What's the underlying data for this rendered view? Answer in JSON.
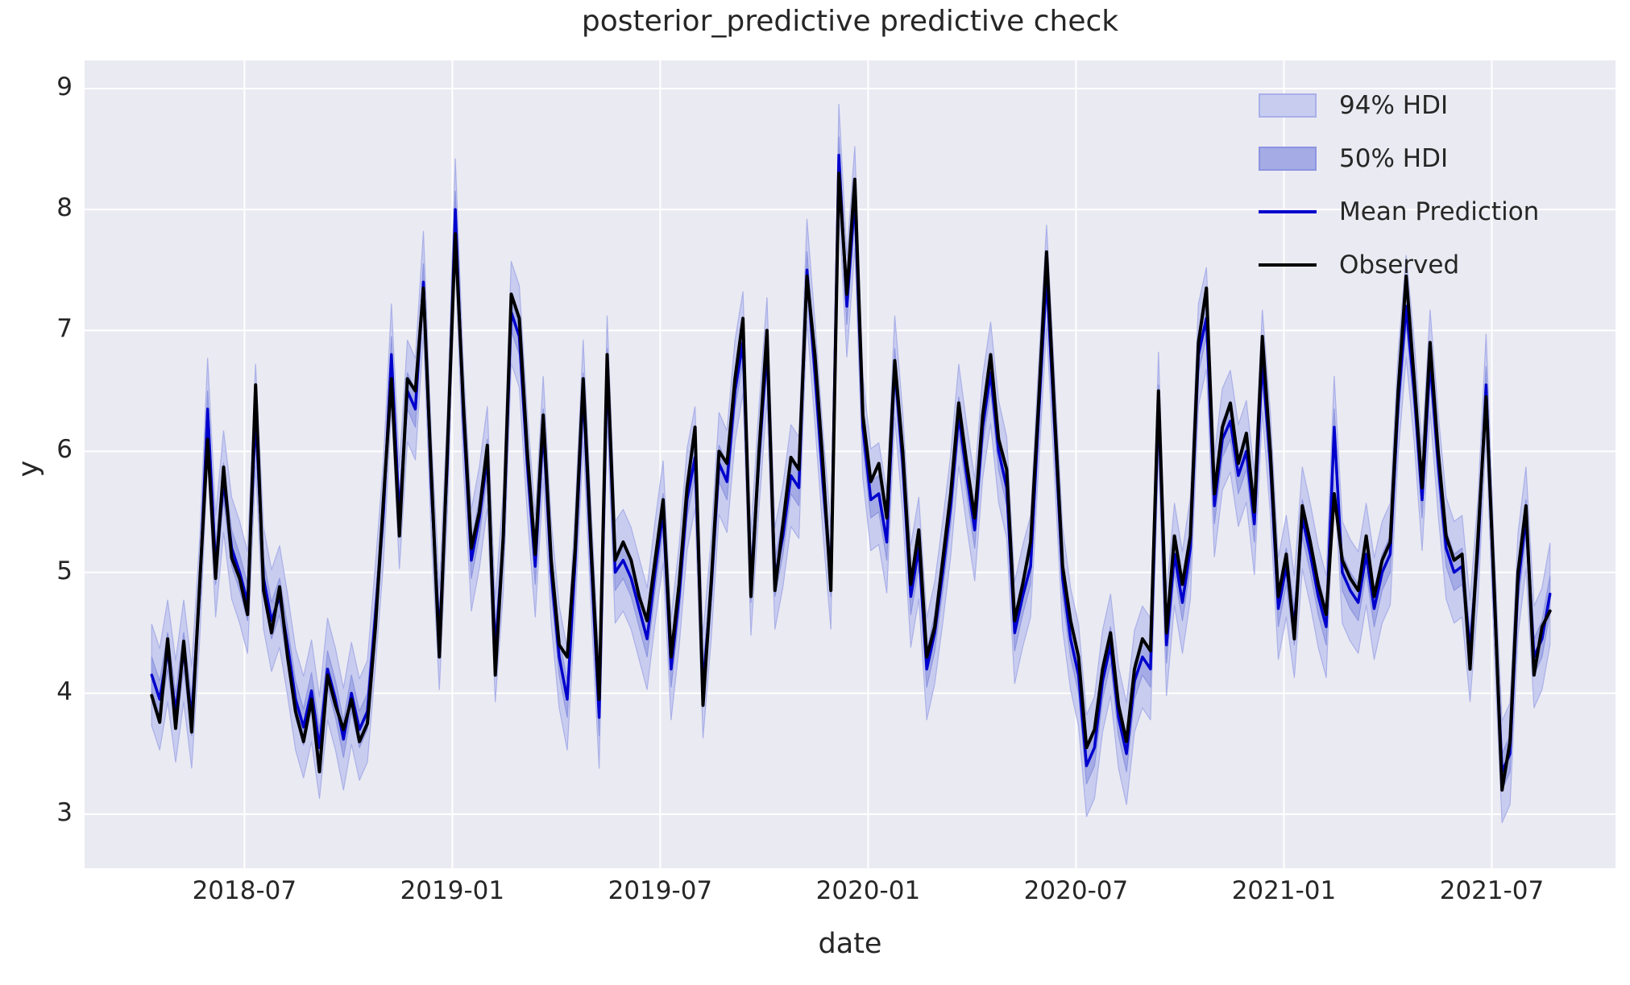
{
  "figure": {
    "title": "posterior_predictive predictive check",
    "xlabel": "date",
    "ylabel": "y"
  },
  "legend": {
    "items": [
      {
        "label": "94% HDI",
        "type": "patch",
        "color": "#c8ccef",
        "edge": "#a9b0e8"
      },
      {
        "label": "50% HDI",
        "type": "patch",
        "color": "#a4abe5",
        "edge": "#8c95e0"
      },
      {
        "label": "Mean Prediction",
        "type": "line",
        "color": "#0000cc"
      },
      {
        "label": "Observed",
        "type": "line",
        "color": "#000000"
      }
    ]
  },
  "chart_data": {
    "type": "line",
    "title": "posterior_predictive predictive check",
    "xlabel": "date",
    "ylabel": "y",
    "grid": true,
    "plot_bg": "#eaeaf2",
    "grid_color": "#ffffff",
    "legend_position": "upper right",
    "x_start_date": "2018-04-08",
    "x_step_days": 7,
    "n_points": 176,
    "xlim_weeks": [
      -8.4,
      183.2
    ],
    "ylim": [
      2.553,
      9.233
    ],
    "y_ticks": [
      3,
      4,
      5,
      6,
      7,
      8,
      9
    ],
    "x_ticks": [
      {
        "label": "2018-07",
        "week": 11.6
      },
      {
        "label": "2019-01",
        "week": 37.62
      },
      {
        "label": "2019-07",
        "week": 63.64
      },
      {
        "label": "2020-01",
        "week": 89.66
      },
      {
        "label": "2020-07",
        "week": 115.68
      },
      {
        "label": "2021-01",
        "week": 141.7
      },
      {
        "label": "2021-07",
        "week": 167.72
      }
    ],
    "bands": [
      {
        "name": "94% HDI",
        "around": "Mean Prediction",
        "halfwidth": 0.42,
        "color": "#c8ccef",
        "edge": "#aab0e8"
      },
      {
        "name": "50% HDI",
        "around": "Mean Prediction",
        "halfwidth": 0.15,
        "color": "#a4abe5",
        "edge": "#8e96df"
      }
    ],
    "series": [
      {
        "name": "Observed",
        "color": "#000000",
        "width": 4,
        "values": [
          3.98,
          3.76,
          4.45,
          3.71,
          4.43,
          3.68,
          4.9,
          6.1,
          4.95,
          5.87,
          5.12,
          4.95,
          4.65,
          6.55,
          4.85,
          4.5,
          4.88,
          4.3,
          3.85,
          3.6,
          3.95,
          3.35,
          4.15,
          3.9,
          3.7,
          3.95,
          3.6,
          3.75,
          4.55,
          5.6,
          6.6,
          5.3,
          6.6,
          6.5,
          7.35,
          5.8,
          4.3,
          6.0,
          7.8,
          6.4,
          5.2,
          5.5,
          6.05,
          4.15,
          5.3,
          7.3,
          7.1,
          6.0,
          5.15,
          6.3,
          5.1,
          4.4,
          4.3,
          5.2,
          6.6,
          5.2,
          3.95,
          6.8,
          5.1,
          5.25,
          5.1,
          4.8,
          4.6,
          5.1,
          5.6,
          4.3,
          4.9,
          5.7,
          6.2,
          3.9,
          4.9,
          6.0,
          5.9,
          6.6,
          7.1,
          4.8,
          6.0,
          7.0,
          4.85,
          5.4,
          5.95,
          5.85,
          7.45,
          6.8,
          5.9,
          4.85,
          8.3,
          7.3,
          8.25,
          6.3,
          5.75,
          5.9,
          5.45,
          6.75,
          6.0,
          4.9,
          5.35,
          4.3,
          4.55,
          5.1,
          5.65,
          6.4,
          5.9,
          5.45,
          6.3,
          6.8,
          6.1,
          5.85,
          4.6,
          4.9,
          5.25,
          6.4,
          7.65,
          6.3,
          5.05,
          4.6,
          4.3,
          3.55,
          3.7,
          4.2,
          4.5,
          3.9,
          3.6,
          4.2,
          4.45,
          4.35,
          6.5,
          4.5,
          5.3,
          4.9,
          5.3,
          6.9,
          7.35,
          5.65,
          6.2,
          6.4,
          5.9,
          6.15,
          5.5,
          6.95,
          6.0,
          4.8,
          5.15,
          4.45,
          5.55,
          5.25,
          4.9,
          4.65,
          5.65,
          5.1,
          4.95,
          4.85,
          5.3,
          4.8,
          5.1,
          5.25,
          6.5,
          7.45,
          6.6,
          5.7,
          6.9,
          6.0,
          5.3,
          5.1,
          5.15,
          4.2,
          5.3,
          6.45,
          4.9,
          3.2,
          3.6,
          5.0,
          5.55,
          4.15,
          4.55,
          4.68
        ]
      },
      {
        "name": "Mean Prediction",
        "color": "#0000cc",
        "width": 3.5,
        "values": [
          4.15,
          3.95,
          4.35,
          3.85,
          4.35,
          3.8,
          4.85,
          6.35,
          5.05,
          5.75,
          5.2,
          5.0,
          4.75,
          6.3,
          4.95,
          4.6,
          4.8,
          4.4,
          3.95,
          3.72,
          4.02,
          3.55,
          4.2,
          3.95,
          3.62,
          4.0,
          3.7,
          3.85,
          4.65,
          5.5,
          6.8,
          5.45,
          6.5,
          6.35,
          7.4,
          5.7,
          4.45,
          5.9,
          8.0,
          6.3,
          5.1,
          5.45,
          5.95,
          4.35,
          5.25,
          7.15,
          6.95,
          5.9,
          5.05,
          6.2,
          5.0,
          4.3,
          3.95,
          5.1,
          6.5,
          5.1,
          3.8,
          6.7,
          5.0,
          5.1,
          4.95,
          4.7,
          4.45,
          5.0,
          5.5,
          4.2,
          4.8,
          5.6,
          5.95,
          4.05,
          4.85,
          5.9,
          5.75,
          6.5,
          6.9,
          4.9,
          5.95,
          6.85,
          4.95,
          5.3,
          5.8,
          5.7,
          7.5,
          6.65,
          5.75,
          4.95,
          8.45,
          7.2,
          8.1,
          6.2,
          5.6,
          5.65,
          5.25,
          6.7,
          5.9,
          4.8,
          5.2,
          4.2,
          4.5,
          5.0,
          5.55,
          6.3,
          5.8,
          5.35,
          6.2,
          6.65,
          6.0,
          5.7,
          4.5,
          4.8,
          5.05,
          6.3,
          7.45,
          6.2,
          4.95,
          4.45,
          4.15,
          3.4,
          3.55,
          4.1,
          4.4,
          3.8,
          3.5,
          4.1,
          4.3,
          4.2,
          6.4,
          4.4,
          5.15,
          4.75,
          5.2,
          6.8,
          7.1,
          5.55,
          6.1,
          6.25,
          5.8,
          6.0,
          5.4,
          6.75,
          5.9,
          4.7,
          5.05,
          4.55,
          5.45,
          5.15,
          4.8,
          4.55,
          6.2,
          5.0,
          4.85,
          4.75,
          5.15,
          4.7,
          5.0,
          5.15,
          6.4,
          7.2,
          6.5,
          5.6,
          6.75,
          5.9,
          5.2,
          5.0,
          5.05,
          4.35,
          5.2,
          6.55,
          4.8,
          3.35,
          3.5,
          4.9,
          5.45,
          4.3,
          4.45,
          4.82
        ]
      }
    ]
  }
}
